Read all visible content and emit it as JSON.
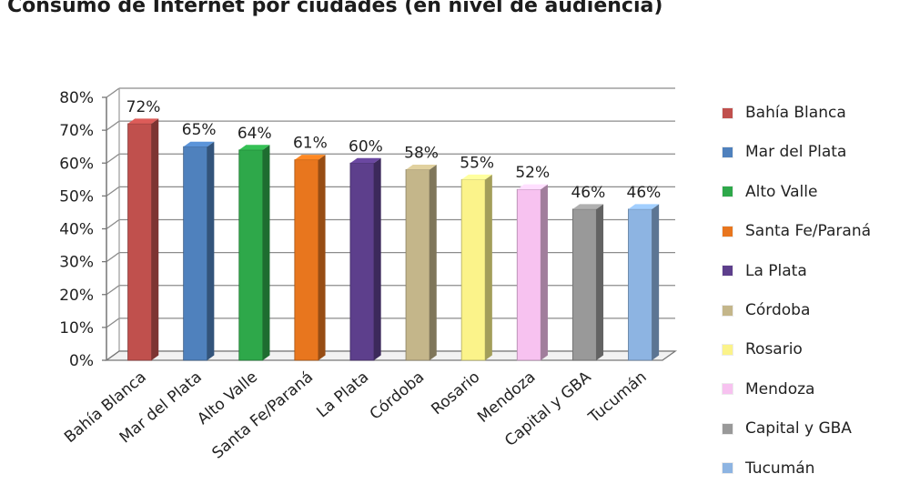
{
  "title": "Consumo de Internet por ciudades (en nivel de audiencia)",
  "chart_data": {
    "type": "bar",
    "title": "Consumo de Internet por ciudades (en nivel de audiencia)",
    "xlabel": "",
    "ylabel": "",
    "ylim": [
      0,
      80
    ],
    "yticks": [
      "0%",
      "10%",
      "20%",
      "30%",
      "40%",
      "50%",
      "60%",
      "70%",
      "80%"
    ],
    "grid": true,
    "legend_position": "right",
    "categories": [
      "Bahía Blanca",
      "Mar del Plata",
      "Alto Valle",
      "Santa Fe/Paraná",
      "La Plata",
      "Córdoba",
      "Rosario",
      "Mendoza",
      "Capital y GBA",
      "Tucumán"
    ],
    "values": [
      72,
      65,
      64,
      61,
      60,
      58,
      55,
      52,
      46,
      46
    ],
    "value_labels": [
      "72%",
      "65%",
      "64%",
      "61%",
      "60%",
      "58%",
      "55%",
      "52%",
      "46%",
      "46%"
    ],
    "colors": [
      "#c0504d",
      "#4f81bd",
      "#2ea84a",
      "#e8761e",
      "#5d3f8c",
      "#c4b68a",
      "#fbf38a",
      "#f7c2f0",
      "#999999",
      "#8db4e2"
    ]
  }
}
